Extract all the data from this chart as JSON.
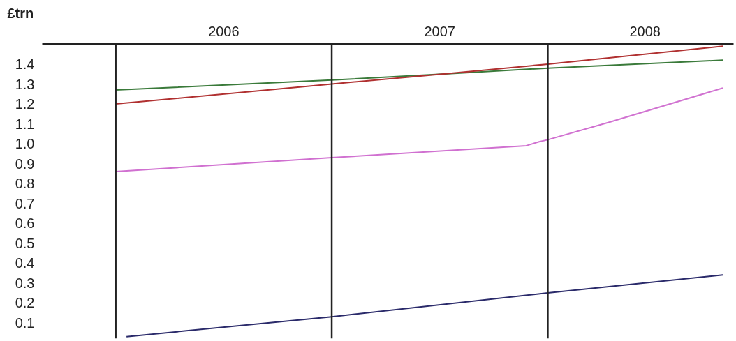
{
  "chart_data": {
    "type": "line",
    "ylabel": "£trn",
    "xlim": [
      2005.66,
      2008.86
    ],
    "ylim": [
      0.02,
      1.5
    ],
    "xticks": [
      {
        "value": 2006.5,
        "label": "2006"
      },
      {
        "value": 2007.5,
        "label": "2007"
      },
      {
        "value": 2008.45,
        "label": "2008"
      }
    ],
    "yticks": [
      {
        "value": 0.1,
        "label": "0.1"
      },
      {
        "value": 0.2,
        "label": "0.2"
      },
      {
        "value": 0.3,
        "label": "0.3"
      },
      {
        "value": 0.4,
        "label": "0.4"
      },
      {
        "value": 0.5,
        "label": "0.5"
      },
      {
        "value": 0.6,
        "label": "0.6"
      },
      {
        "value": 0.7,
        "label": "0.7"
      },
      {
        "value": 0.8,
        "label": "0.8"
      },
      {
        "value": 0.9,
        "label": "0.9"
      },
      {
        "value": 1.0,
        "label": "1.0"
      },
      {
        "value": 1.1,
        "label": "1.1"
      },
      {
        "value": 1.2,
        "label": "1.2"
      },
      {
        "value": 1.3,
        "label": "1.3"
      },
      {
        "value": 1.4,
        "label": "1.4"
      }
    ],
    "grid": false,
    "marker": "none",
    "line_style": "solid",
    "ref_lines": [
      {
        "axis": "x",
        "value": 2006,
        "color": "#222222"
      },
      {
        "axis": "x",
        "value": 2007,
        "color": "#222222"
      },
      {
        "axis": "x",
        "value": 2008,
        "color": "#222222"
      }
    ],
    "series": [
      {
        "color": "#3a7a3a",
        "x": [
          2006,
          2007,
          2007.51,
          2008,
          2008.81
        ],
        "values": [
          1.27,
          1.32,
          1.35,
          1.38,
          1.42
        ]
      },
      {
        "color": "#b03030",
        "x": [
          2006,
          2007,
          2007.51,
          2008,
          2008.81
        ],
        "values": [
          1.2,
          1.3,
          1.35,
          1.4,
          1.49
        ]
      },
      {
        "color": "#d070d0",
        "x": [
          2006,
          2007,
          2007.9,
          2007.96,
          2008,
          2008.29,
          2008.81
        ],
        "values": [
          0.86,
          0.93,
          0.99,
          1.01,
          1.02,
          1.11,
          1.28
        ]
      },
      {
        "color": "#2a2a6a",
        "x": [
          2006.05,
          2007,
          2008,
          2008.81
        ],
        "values": [
          0.03,
          0.13,
          0.25,
          0.34
        ]
      }
    ]
  }
}
